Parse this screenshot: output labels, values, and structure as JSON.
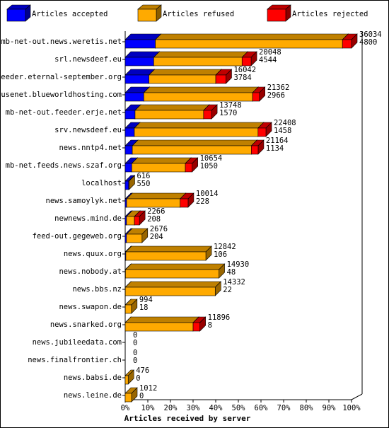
{
  "chart_data": {
    "type": "bar3d-stacked-horizontal",
    "orientation": "horizontal",
    "x_label": "Articles received by server",
    "categories": [
      "mb-net-out.news.weretis.net",
      "srl.newsdeef.eu",
      "feeder.eternal-september.org",
      "usenet.blueworldhosting.com",
      "mb-net-out.feeder.erje.net",
      "srv.newsdeef.eu",
      "news.nntp4.net",
      "mb-net.feeds.news.szaf.org",
      "localhost",
      "news.samoylyk.net",
      "newnews.mind.de",
      "feed-out.gegeweb.org",
      "news.quux.org",
      "news.nobody.at",
      "news.bbs.nz",
      "news.swapon.de",
      "news.snarked.org",
      "news.jubileedata.com",
      "news.finalfrontier.ch",
      "news.babsi.de",
      "news.leine.de"
    ],
    "offered": [
      36034,
      20048,
      16042,
      21362,
      13748,
      22408,
      21164,
      10654,
      616,
      10014,
      2266,
      2676,
      12842,
      14930,
      14332,
      994,
      11896,
      0,
      0,
      476,
      1012
    ],
    "accepted": [
      4800,
      4544,
      3784,
      2966,
      1570,
      1458,
      1134,
      1050,
      550,
      228,
      208,
      204,
      106,
      48,
      22,
      18,
      8,
      0,
      0,
      0,
      0
    ],
    "series": [
      {
        "name": "Articles accepted",
        "color": "#0000ff",
        "values": [
          13.32,
          12.61,
          10.5,
          8.23,
          4.36,
          4.05,
          3.15,
          2.91,
          1.53,
          0.63,
          0.58,
          0.57,
          0.29,
          0.13,
          0.06,
          0.05,
          0.02,
          0,
          0,
          0,
          0
        ]
      },
      {
        "name": "Articles refused",
        "color": "#ffaa00",
        "values": [
          82.68,
          39.03,
          29.52,
          48.05,
          30.29,
          54.64,
          52.58,
          23.66,
          0.18,
          23.66,
          3.5,
          6.86,
          35.35,
          41.3,
          39.71,
          2.71,
          29.99,
          0,
          0,
          1.32,
          2.81
        ]
      },
      {
        "name": "Articles rejected",
        "color": "#ff0000",
        "values": [
          4,
          4,
          4.5,
          3,
          3.5,
          3.5,
          3,
          3,
          0,
          3.5,
          2.21,
          0,
          0,
          0,
          0,
          0,
          3,
          0,
          0,
          0,
          0
        ]
      }
    ],
    "xlim": [
      0,
      100
    ],
    "xticks": [
      {
        "value": 0,
        "label": "0%"
      },
      {
        "value": 10,
        "label": "10%"
      },
      {
        "value": 20,
        "label": "20%"
      },
      {
        "value": 30,
        "label": "30%"
      },
      {
        "value": 40,
        "label": "40%"
      },
      {
        "value": 50,
        "label": "50%"
      },
      {
        "value": 60,
        "label": "60%"
      },
      {
        "value": 70,
        "label": "70%"
      },
      {
        "value": 80,
        "label": "80%"
      },
      {
        "value": 90,
        "label": "90%"
      },
      {
        "value": 100,
        "label": "100%"
      }
    ]
  }
}
